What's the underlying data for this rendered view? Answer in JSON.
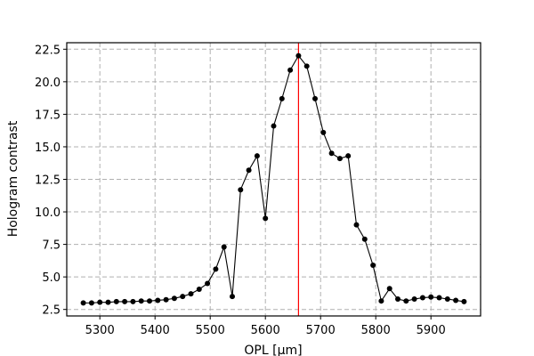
{
  "chart_data": {
    "type": "line",
    "title": "",
    "xlabel": "OPL [μm]",
    "ylabel": "Hologram contrast",
    "xlim": [
      5240,
      5990
    ],
    "ylim": [
      2.0,
      23.0
    ],
    "xticks": [
      5300,
      5400,
      5500,
      5600,
      5700,
      5800,
      5900
    ],
    "yticks": [
      2.5,
      5.0,
      7.5,
      10.0,
      12.5,
      15.0,
      17.5,
      20.0,
      22.5
    ],
    "xtick_labels": [
      "5300",
      "5400",
      "5500",
      "5600",
      "5700",
      "5800",
      "5900"
    ],
    "ytick_labels": [
      "2.5",
      "5.0",
      "7.5",
      "10.0",
      "12.5",
      "15.0",
      "17.5",
      "20.0",
      "22.5"
    ],
    "grid": true,
    "series": [
      {
        "color": "#000000",
        "marker": "circle",
        "x": [
          5270,
          5285,
          5300,
          5315,
          5330,
          5345,
          5360,
          5375,
          5390,
          5405,
          5420,
          5435,
          5450,
          5465,
          5480,
          5495,
          5510,
          5525,
          5540,
          5555,
          5570,
          5585,
          5600,
          5615,
          5630,
          5645,
          5660,
          5675,
          5690,
          5705,
          5720,
          5735,
          5750,
          5765,
          5780,
          5795,
          5810,
          5825,
          5840,
          5855,
          5870,
          5885,
          5900,
          5915,
          5930,
          5945,
          5960
        ],
        "y": [
          3.0,
          3.0,
          3.05,
          3.05,
          3.1,
          3.1,
          3.1,
          3.15,
          3.15,
          3.2,
          3.25,
          3.35,
          3.5,
          3.7,
          4.05,
          4.5,
          5.6,
          7.3,
          3.5,
          11.7,
          13.2,
          14.3,
          9.5,
          16.6,
          18.7,
          20.9,
          22.0,
          21.2,
          18.7,
          16.1,
          14.5,
          14.1,
          14.3,
          9.0,
          7.9,
          5.9,
          3.15,
          4.1,
          3.3,
          3.15,
          3.3,
          3.4,
          3.45,
          3.4,
          3.3,
          3.2,
          3.1
        ]
      }
    ],
    "vline": {
      "x": 5660,
      "color": "#ff0000"
    }
  }
}
